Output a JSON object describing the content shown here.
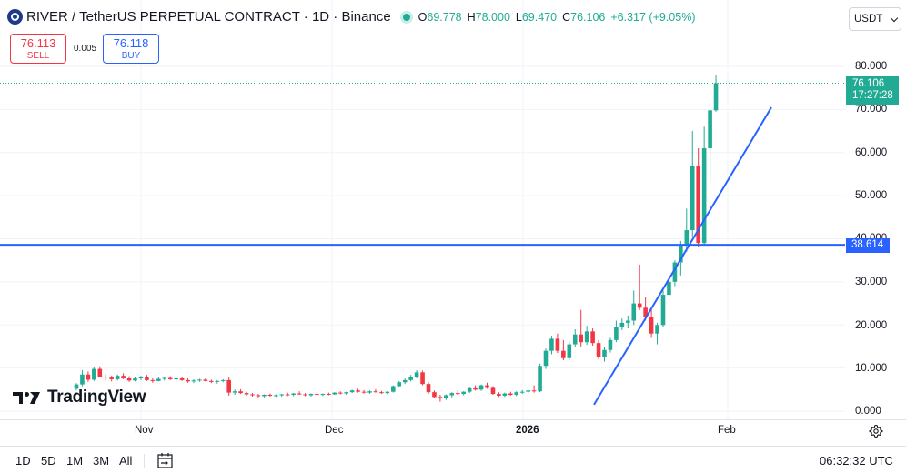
{
  "header": {
    "title": "RIVER / TetherUS PERPETUAL CONTRACT · 1D · Binance",
    "ohlc": {
      "o_label": "O",
      "o_value": "69.778",
      "h_label": "H",
      "h_value": "78.000",
      "l_label": "L",
      "l_value": "69.470",
      "c_label": "C",
      "c_value": "76.106",
      "change": "+6.317 (+9.05%)"
    },
    "status_color": "#22ab94"
  },
  "trade": {
    "sell_price": "76.113",
    "sell_label": "SELL",
    "spread": "0.005",
    "buy_price": "76.118",
    "buy_label": "BUY"
  },
  "currency": {
    "label": "USDT",
    "icon": "chevron-down-icon"
  },
  "price_axis": {
    "ticks": [
      "80.000",
      "70.000",
      "60.000",
      "50.000",
      "40.000",
      "30.000",
      "20.000",
      "10.000",
      "0.000"
    ],
    "last_price": "76.106",
    "countdown": "17:27:28",
    "hline_price": "38.614"
  },
  "time_axis": {
    "labels": [
      "Nov",
      "Dec",
      "2026",
      "Feb"
    ]
  },
  "bottom_bar": {
    "ranges": [
      "1D",
      "5D",
      "1M",
      "3M",
      "All"
    ],
    "clock": "06:32:32 UTC"
  },
  "logo": {
    "text": "TradingView"
  },
  "colors": {
    "up": "#22ab94",
    "down": "#f23645",
    "line": "#2962ff"
  },
  "chart_data": {
    "type": "candlestick",
    "interval": "1D",
    "ylim": [
      0,
      80
    ],
    "horizontal_line": 38.614,
    "last_close": 76.106,
    "trendline": [
      [
        0,
        1.5
      ],
      [
        1,
        70.5
      ]
    ],
    "candles": [
      [
        5.2,
        6.5,
        4.8,
        6.2
      ],
      [
        6.2,
        9.5,
        5.8,
        8.5
      ],
      [
        8.5,
        9.2,
        6.8,
        7.3
      ],
      [
        7.3,
        10.2,
        7.0,
        9.8
      ],
      [
        9.8,
        10.4,
        7.8,
        8.0
      ],
      [
        8.0,
        8.6,
        7.2,
        7.8
      ],
      [
        7.8,
        8.2,
        6.9,
        7.4
      ],
      [
        7.4,
        8.5,
        7.1,
        8.2
      ],
      [
        8.2,
        8.8,
        7.4,
        7.6
      ],
      [
        7.6,
        8.1,
        6.8,
        7.1
      ],
      [
        7.1,
        7.8,
        6.9,
        7.6
      ],
      [
        7.6,
        8.2,
        7.2,
        7.9
      ],
      [
        7.9,
        8.4,
        7.0,
        7.2
      ],
      [
        7.2,
        7.6,
        6.6,
        7.0
      ],
      [
        7.0,
        7.9,
        6.9,
        7.5
      ],
      [
        7.5,
        8.0,
        7.1,
        7.7
      ],
      [
        7.7,
        8.1,
        7.2,
        7.4
      ],
      [
        7.4,
        7.8,
        6.9,
        7.6
      ],
      [
        7.6,
        8.0,
        7.0,
        7.2
      ],
      [
        7.2,
        7.6,
        6.6,
        6.9
      ],
      [
        6.9,
        7.4,
        6.5,
        7.1
      ],
      [
        7.1,
        7.5,
        6.8,
        7.3
      ],
      [
        7.3,
        7.6,
        6.9,
        7.0
      ],
      [
        7.0,
        7.3,
        6.5,
        6.8
      ],
      [
        6.8,
        7.2,
        6.4,
        7.0
      ],
      [
        7.0,
        7.4,
        6.7,
        7.2
      ],
      [
        7.2,
        7.8,
        3.6,
        4.3
      ],
      [
        4.3,
        5.0,
        3.8,
        4.6
      ],
      [
        4.6,
        5.1,
        4.0,
        4.2
      ],
      [
        4.2,
        4.5,
        3.6,
        3.9
      ],
      [
        3.9,
        4.2,
        3.4,
        3.7
      ],
      [
        3.7,
        4.0,
        3.2,
        3.5
      ],
      [
        3.5,
        3.9,
        3.2,
        3.8
      ],
      [
        3.8,
        4.1,
        3.4,
        3.6
      ],
      [
        3.6,
        3.9,
        3.3,
        3.7
      ],
      [
        3.7,
        4.0,
        3.4,
        3.9
      ],
      [
        3.9,
        4.3,
        3.5,
        3.8
      ],
      [
        3.8,
        4.2,
        3.5,
        4.1
      ],
      [
        4.1,
        4.6,
        3.8,
        3.9
      ],
      [
        3.9,
        4.2,
        3.5,
        3.7
      ],
      [
        3.7,
        4.1,
        3.4,
        4.0
      ],
      [
        4.0,
        4.4,
        3.7,
        3.8
      ],
      [
        3.8,
        4.1,
        3.5,
        4.0
      ],
      [
        4.0,
        4.3,
        3.7,
        3.9
      ],
      [
        3.9,
        4.4,
        3.8,
        4.3
      ],
      [
        4.3,
        4.6,
        3.9,
        4.1
      ],
      [
        4.1,
        4.5,
        3.8,
        4.4
      ],
      [
        4.4,
        5.0,
        4.2,
        4.8
      ],
      [
        4.8,
        5.2,
        4.3,
        4.5
      ],
      [
        4.5,
        4.9,
        4.1,
        4.3
      ],
      [
        4.3,
        4.8,
        4.0,
        4.6
      ],
      [
        4.6,
        5.1,
        4.3,
        4.4
      ],
      [
        4.4,
        4.7,
        4.0,
        4.2
      ],
      [
        4.2,
        4.6,
        3.9,
        4.5
      ],
      [
        4.5,
        6.0,
        4.3,
        5.8
      ],
      [
        5.8,
        7.0,
        5.5,
        6.7
      ],
      [
        6.7,
        7.6,
        6.3,
        7.2
      ],
      [
        7.2,
        8.4,
        6.9,
        8.0
      ],
      [
        8.0,
        9.5,
        7.6,
        9.0
      ],
      [
        9.0,
        9.4,
        6.0,
        6.3
      ],
      [
        6.3,
        6.7,
        4.0,
        4.4
      ],
      [
        4.4,
        4.8,
        3.0,
        3.3
      ],
      [
        3.3,
        3.8,
        2.2,
        3.0
      ],
      [
        3.0,
        3.9,
        2.6,
        3.7
      ],
      [
        3.7,
        4.4,
        3.2,
        4.2
      ],
      [
        4.2,
        4.8,
        3.8,
        4.0
      ],
      [
        4.0,
        4.6,
        3.7,
        4.5
      ],
      [
        4.5,
        5.5,
        4.2,
        5.3
      ],
      [
        5.3,
        6.0,
        4.8,
        5.0
      ],
      [
        5.0,
        6.2,
        4.7,
        6.0
      ],
      [
        6.0,
        6.6,
        5.2,
        5.4
      ],
      [
        5.4,
        5.8,
        3.8,
        4.0
      ],
      [
        4.0,
        4.4,
        3.3,
        3.6
      ],
      [
        3.6,
        4.3,
        3.3,
        4.1
      ],
      [
        4.1,
        4.5,
        3.6,
        3.8
      ],
      [
        3.8,
        4.6,
        3.5,
        4.4
      ],
      [
        4.4,
        4.9,
        4.0,
        4.5
      ],
      [
        4.5,
        5.0,
        4.1,
        4.8
      ],
      [
        4.8,
        6.0,
        4.3,
        4.6
      ],
      [
        4.6,
        11.0,
        4.4,
        10.5
      ],
      [
        10.5,
        14.5,
        9.8,
        14.0
      ],
      [
        14.0,
        17.5,
        13.2,
        16.8
      ],
      [
        16.8,
        18.0,
        13.5,
        14.0
      ],
      [
        14.0,
        16.5,
        11.8,
        12.3
      ],
      [
        12.3,
        16.0,
        11.8,
        15.5
      ],
      [
        15.5,
        19.0,
        14.8,
        17.8
      ],
      [
        17.8,
        23.5,
        15.0,
        16.0
      ],
      [
        16.0,
        19.8,
        15.4,
        18.5
      ],
      [
        18.5,
        19.2,
        15.2,
        15.8
      ],
      [
        15.8,
        16.5,
        12.0,
        12.5
      ],
      [
        12.5,
        15.0,
        11.5,
        14.2
      ],
      [
        14.2,
        17.0,
        13.6,
        16.5
      ],
      [
        16.5,
        21.0,
        16.0,
        19.5
      ],
      [
        19.5,
        21.5,
        18.8,
        20.5
      ],
      [
        20.5,
        22.2,
        19.2,
        21.0
      ],
      [
        21.0,
        28.0,
        20.0,
        25.0
      ],
      [
        25.0,
        34.0,
        23.5,
        24.0
      ],
      [
        24.0,
        26.5,
        21.0,
        21.8
      ],
      [
        21.8,
        24.0,
        17.0,
        18.0
      ],
      [
        18.0,
        20.5,
        15.5,
        20.0
      ],
      [
        20.0,
        28.0,
        19.5,
        27.0
      ],
      [
        27.0,
        30.5,
        26.2,
        30.0
      ],
      [
        30.0,
        35.0,
        29.0,
        34.5
      ],
      [
        34.5,
        39.5,
        31.5,
        38.5
      ],
      [
        38.5,
        47.0,
        37.0,
        42.0
      ],
      [
        42.0,
        65.0,
        40.5,
        57.0
      ],
      [
        57.0,
        61.0,
        38.0,
        39.0
      ],
      [
        39.0,
        66.0,
        38.5,
        61.0
      ],
      [
        61.0,
        70.0,
        53.0,
        69.8
      ],
      [
        69.8,
        78.0,
        69.5,
        76.1
      ]
    ]
  }
}
